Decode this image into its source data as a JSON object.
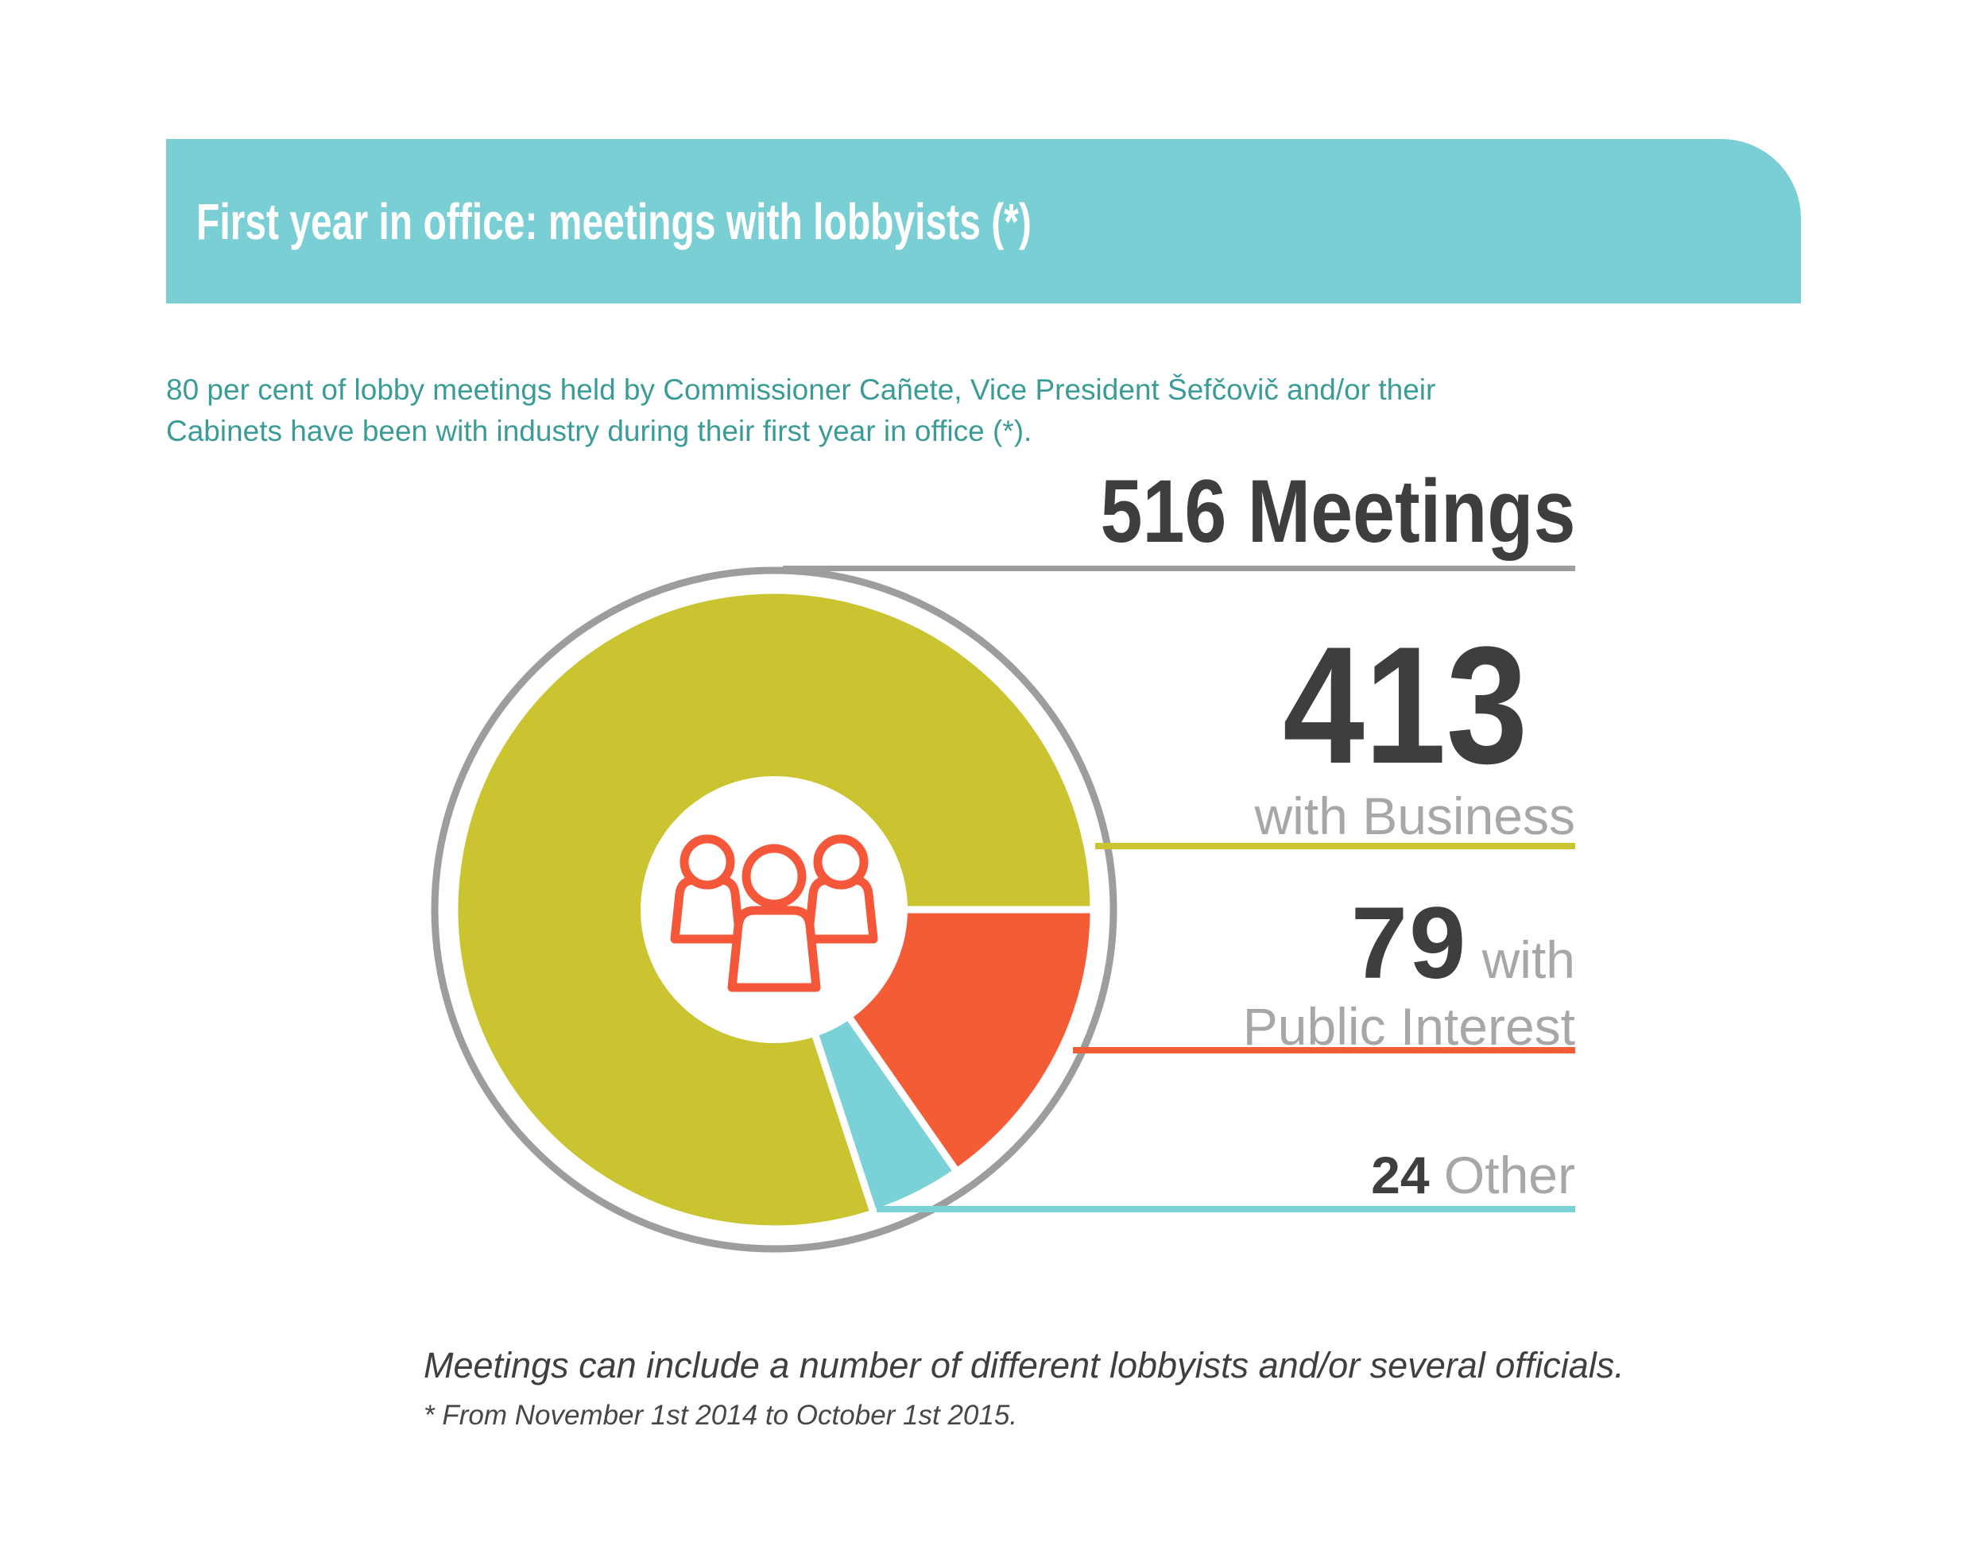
{
  "header": {
    "title": "First year in office: meetings with lobbyists (*)"
  },
  "intro": {
    "line1": "80 per cent of lobby meetings held by Commissioner Cañete, Vice President Šefčovič and/or their",
    "line2": "Cabinets have been with industry during their first year in office (*)."
  },
  "chart_data": {
    "type": "pie",
    "title": "516 Meetings",
    "total": 516,
    "start_angle_deg": 0,
    "legend_position": "right",
    "slices": [
      {
        "key": "public_interest",
        "label": "with Public Interest",
        "value": 79,
        "color": "#f45c35"
      },
      {
        "key": "other",
        "label": "Other",
        "value": 24,
        "color": "#7bd1d8"
      },
      {
        "key": "business",
        "label": "with Business",
        "value": 413,
        "color": "#cbc431"
      }
    ]
  },
  "callouts": {
    "total": {
      "text": "516 Meetings"
    },
    "business": {
      "number": "413",
      "label": "with Business"
    },
    "public": {
      "number": "79",
      "inline_label": "with",
      "label2": "Public Interest"
    },
    "other": {
      "number": "24",
      "label": "Other"
    }
  },
  "footer": {
    "note": "Meetings can include a number of different lobbyists and/or several officials.",
    "asterisk": "* From November 1st 2014 to October 1st 2015."
  },
  "colors": {
    "banner": "#7acfd4",
    "intro": "#3b9c97",
    "dark": "#3e3e3e",
    "gray": "#a7a7a7",
    "ring": "#9d9d9d",
    "icon": "#f4573a"
  }
}
